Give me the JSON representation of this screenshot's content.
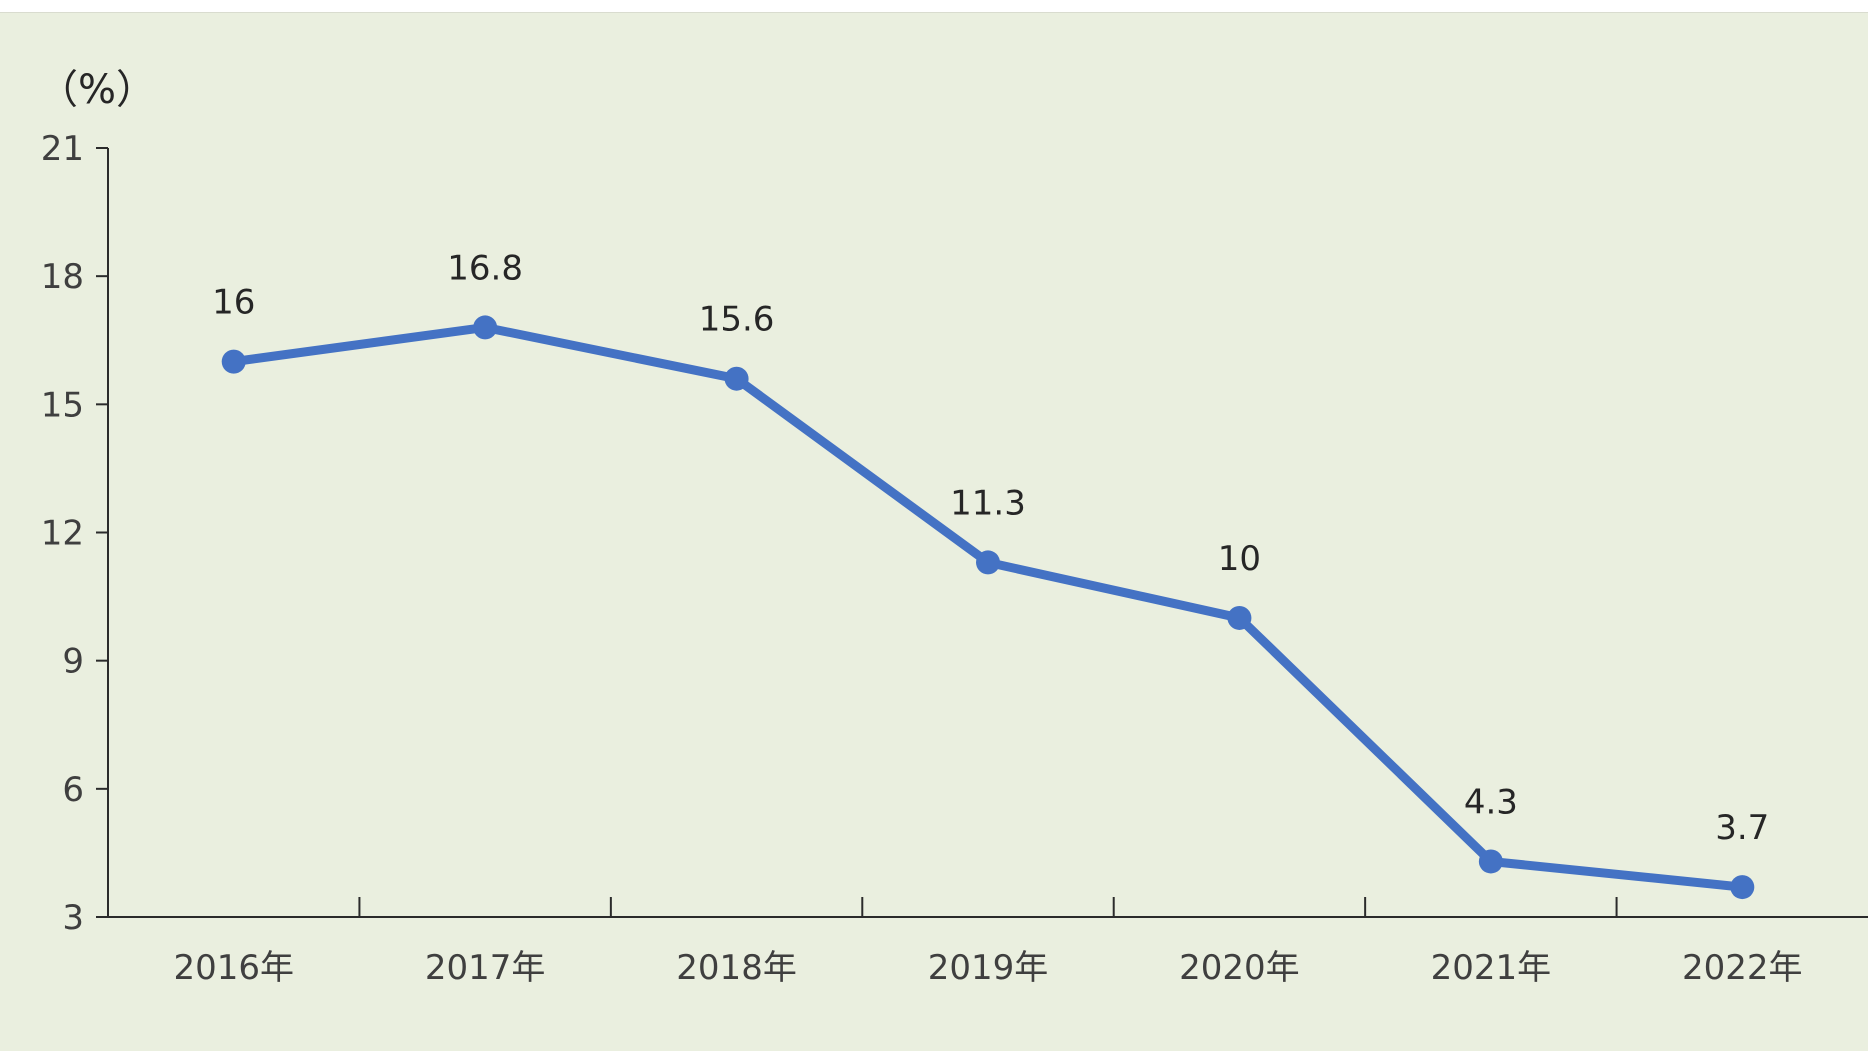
{
  "chart_data": {
    "type": "line",
    "unit_label": "（%）",
    "categories": [
      "2016年",
      "2017年",
      "2018年",
      "2019年",
      "2020年",
      "2021年",
      "2022年"
    ],
    "series": [
      {
        "values": [
          16,
          16.8,
          15.6,
          11.3,
          10,
          4.3,
          3.7
        ],
        "data_labels": [
          "16",
          "16.8",
          "15.6",
          "11.3",
          "10",
          "4.3",
          "3.7"
        ],
        "color": "#4472c4"
      }
    ],
    "y_ticks": [
      "3",
      "6",
      "9",
      "12",
      "15",
      "18",
      "21"
    ],
    "ylim": [
      3,
      21
    ],
    "y_step": 3,
    "grid": false,
    "legend": "none",
    "colors": {
      "background": "#eaefdf",
      "axis": "#2b2b2b"
    }
  }
}
